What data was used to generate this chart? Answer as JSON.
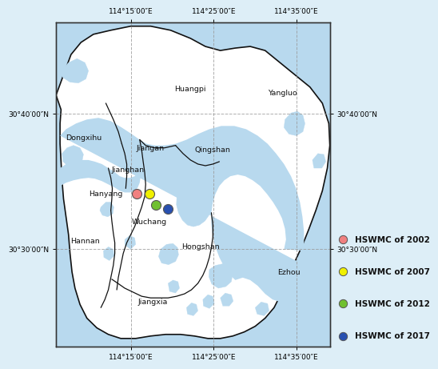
{
  "map_xlim": [
    114.1,
    114.65
  ],
  "map_ylim": [
    30.38,
    30.78
  ],
  "xtick_vals": [
    114.25,
    114.4167,
    114.5833
  ],
  "ytick_vals": [
    30.5,
    30.6667
  ],
  "xtick_labels": [
    "114°15′00″E",
    "114°25′00″E",
    "114°35′00″E"
  ],
  "ytick_labels": [
    "30°30′00″N",
    "30°40′00″N"
  ],
  "water_color": "#b8d9ee",
  "land_color": "#ffffff",
  "border_color": "#111111",
  "grid_color": "#999999",
  "outer_bg": "#ddeef7",
  "hswmc_points": [
    {
      "year": 2002,
      "lon": 114.262,
      "lat": 30.568,
      "color": "#f08080",
      "label": "HSWMC of 2002"
    },
    {
      "year": 2007,
      "lon": 114.287,
      "lat": 30.568,
      "color": "#f0f000",
      "label": "HSWMC of 2007"
    },
    {
      "year": 2012,
      "lon": 114.3,
      "lat": 30.555,
      "color": "#70c030",
      "label": "HSWMC of 2012"
    },
    {
      "year": 2017,
      "lon": 114.325,
      "lat": 30.55,
      "color": "#2850b0",
      "label": "HSWMC of 2017"
    }
  ],
  "district_labels": [
    {
      "name": "Huangpi",
      "lon": 114.37,
      "lat": 30.698
    },
    {
      "name": "Yangluo",
      "lon": 114.555,
      "lat": 30.693
    },
    {
      "name": "Dongxihu",
      "lon": 114.155,
      "lat": 30.637
    },
    {
      "name": "Jiangan",
      "lon": 114.29,
      "lat": 30.625
    },
    {
      "name": "Qingshan",
      "lon": 114.415,
      "lat": 30.623
    },
    {
      "name": "Jianghan",
      "lon": 114.245,
      "lat": 30.598
    },
    {
      "name": "Hanyang",
      "lon": 114.2,
      "lat": 30.568
    },
    {
      "name": "Wuchang",
      "lon": 114.288,
      "lat": 30.534
    },
    {
      "name": "Hannan",
      "lon": 114.158,
      "lat": 30.51
    },
    {
      "name": "Hongshan",
      "lon": 114.39,
      "lat": 30.503
    },
    {
      "name": "Ezhou",
      "lon": 114.568,
      "lat": 30.472
    },
    {
      "name": "Jiangxia",
      "lon": 114.295,
      "lat": 30.435
    }
  ],
  "dot_size": 75,
  "legend_fontsize": 7.5,
  "label_fontsize": 6.8,
  "tick_fontsize": 6.5
}
